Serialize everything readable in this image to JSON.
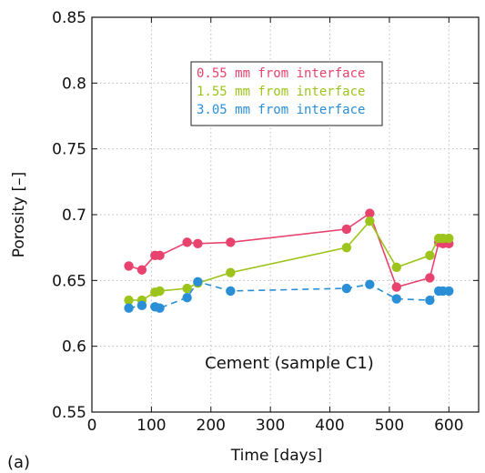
{
  "panel_label": "(a)",
  "chart_data": {
    "type": "line",
    "title": "",
    "xlabel": "Time [days]",
    "ylabel": "Porosity [–]",
    "xlim": [
      0,
      650
    ],
    "ylim": [
      0.55,
      0.85
    ],
    "xticks": [
      0,
      100,
      200,
      300,
      400,
      500,
      600
    ],
    "yticks": [
      0.55,
      0.6,
      0.65,
      0.7,
      0.75,
      0.8,
      0.85
    ],
    "xtick_labels": [
      "0",
      "100",
      "200",
      "300",
      "400",
      "500",
      "600"
    ],
    "ytick_labels": [
      "0.55",
      "0.6",
      "0.65",
      "0.7",
      "0.75",
      "0.8",
      "0.85"
    ],
    "grid": true,
    "legend_position": "top-center",
    "annotation": "Cement (sample C1)",
    "series": [
      {
        "name": "0.55 mm from interface",
        "color": "#e8436e",
        "line_style": "solid",
        "x": [
          62,
          84,
          106,
          114,
          160,
          178,
          233,
          428,
          467,
          512,
          568,
          583,
          590,
          600
        ],
        "y": [
          0.661,
          0.658,
          0.669,
          0.669,
          0.679,
          0.678,
          0.679,
          0.689,
          0.701,
          0.645,
          0.652,
          0.679,
          0.678,
          0.678
        ]
      },
      {
        "name": "1.55 mm from interface",
        "color": "#9dc41a",
        "line_style": "solid",
        "x": [
          62,
          84,
          106,
          114,
          160,
          178,
          233,
          428,
          467,
          512,
          568,
          583,
          590,
          600
        ],
        "y": [
          0.635,
          0.635,
          0.641,
          0.642,
          0.644,
          0.648,
          0.656,
          0.675,
          0.695,
          0.66,
          0.669,
          0.682,
          0.682,
          0.682
        ]
      },
      {
        "name": "3.05 mm from interface",
        "color": "#2a8fd6",
        "line_style": "dashed",
        "x": [
          62,
          84,
          106,
          114,
          160,
          178,
          233,
          428,
          467,
          512,
          568,
          583,
          590,
          600
        ],
        "y": [
          0.629,
          0.631,
          0.63,
          0.629,
          0.637,
          0.649,
          0.642,
          0.644,
          0.647,
          0.636,
          0.635,
          0.642,
          0.642,
          0.642
        ]
      }
    ]
  }
}
